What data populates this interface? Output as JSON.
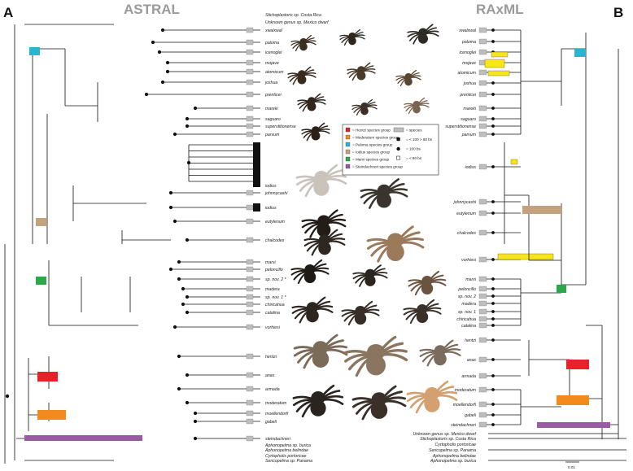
{
  "panels": {
    "left_letter": "A",
    "left_title": "ASTRAL",
    "right_letter": "B",
    "right_title": "RAxML"
  },
  "astral_taxa": [
    "Stichoplastoris sp. Costa Rica",
    "Unknown genus sp. Mexico dwarf",
    "xwalxwal",
    "paloma",
    "icenoglei",
    "mojave",
    "atomicum",
    "joshua",
    "prenticei",
    "mareki",
    "saguaro",
    "superstitionense",
    "parvum",
    "iodius",
    "johnnycashi",
    "iodius",
    "eutylenum",
    "chalcodes",
    "marxi",
    "peloncillo",
    "sp. nov. 2 *",
    "madera",
    "sp. nov. 1 *",
    "chiricahua",
    "catalina",
    "vorhiesi",
    "hentzi",
    "anax",
    "armada",
    "moderatum",
    "moellendorfi",
    "gabeli",
    "steindachneri",
    "Aphonopelma sp. burica",
    "Aphonopelma belindae",
    "Cyrtopholis portoricae",
    "Sericopelma sp. Panama"
  ],
  "raxml_taxa": [
    "xwalxwal",
    "paloma",
    "icenoglei",
    "mojave",
    "atomicum",
    "joshua",
    "prenticei",
    "mareki",
    "saguaro",
    "superstitionense",
    "parvum",
    "iodius",
    "johnnycashi",
    "eutylenum",
    "chalcodes",
    "vorhiesi",
    "marxi",
    "peloncillo",
    "sp. nov. 2",
    "madera",
    "sp. nov. 1",
    "chiricahua",
    "catalina",
    "hentzi",
    "anax",
    "armada",
    "moderatum",
    "moellendorfi",
    "gabeli",
    "steindachneri",
    "Unknown genus sp. Mexico dwarf",
    "Stichoplastoris sp. Costa Rica",
    "Cyrtopholis portoricae",
    "Sericopelma sp. Panama",
    "Aphonopelma belindae",
    "Aphonopelma sp. burica"
  ],
  "legend": {
    "groups": [
      {
        "label": "= Hentzi species group",
        "color": "#e8202a"
      },
      {
        "label": "= Moderatum species group",
        "color": "#f28a1e"
      },
      {
        "label": "= Paloma species group",
        "color": "#29b5d0"
      },
      {
        "label": "= Iodius species group",
        "color": "#c4a27e"
      },
      {
        "label": "= Marxi species group",
        "color": "#2aa84a"
      },
      {
        "label": "= Steindachneri species group",
        "color": "#9b5aa6"
      }
    ],
    "support": [
      "= species",
      "= < 100 > 80 bs",
      "= 100 bs",
      "= < 80 bs"
    ]
  },
  "scale_label": "0.01",
  "colors": {
    "highlight": "#f7e51c",
    "species_bar": "#bdbdbd",
    "branch": "#111111"
  }
}
